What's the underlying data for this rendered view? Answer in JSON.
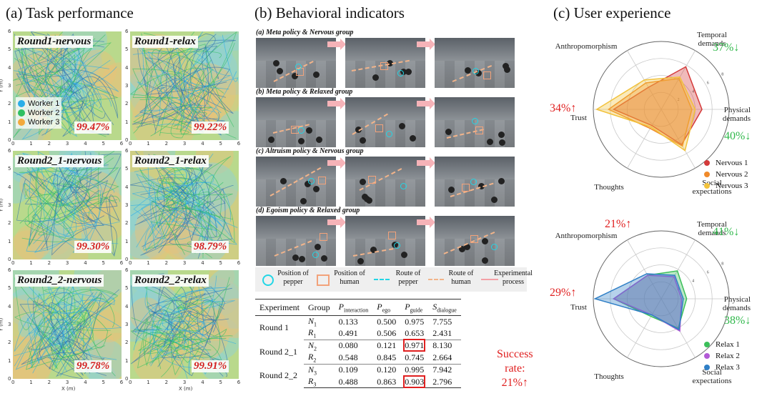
{
  "titles": {
    "a": "(a) Task performance",
    "b": "(b) Behavioral indicators",
    "c": "(c) User experience"
  },
  "task_performance": {
    "legend": [
      {
        "name": "Worker 1",
        "color": "#2aaee8"
      },
      {
        "name": "Worker 2",
        "color": "#2fc062"
      },
      {
        "name": "Worker 3",
        "color": "#f2a93b"
      }
    ],
    "panels": [
      {
        "label": "Round1-nervous",
        "rate": "99.47%"
      },
      {
        "label": "Round1-relax",
        "rate": "99.22%"
      },
      {
        "label": "Round2_1-nervous",
        "rate": "99.30%"
      },
      {
        "label": "Round2_1-relax",
        "rate": "98.79%"
      },
      {
        "label": "Round2_2-nervous",
        "rate": "99.78%"
      },
      {
        "label": "Round2_2-relax",
        "rate": "99.91%"
      }
    ],
    "x_ticks": [
      "0",
      "1",
      "2",
      "3",
      "4",
      "5",
      "6"
    ],
    "y_ticks": [
      "6",
      "5",
      "4",
      "3",
      "2",
      "1",
      "0"
    ],
    "xlabel": "X (m)",
    "ylabel": "Y (m)"
  },
  "behavioral": {
    "rows": [
      {
        "title": "(a) Meta policy & Nervous group"
      },
      {
        "title": "(b) Meta policy & Relaxed group"
      },
      {
        "title": "(c) Altruism policy & Nervous group"
      },
      {
        "title": "(d) Egoism policy & Relaxed group"
      }
    ],
    "legend": {
      "pepper_position": "Position of pepper",
      "human_position": "Position of human",
      "pepper_route": "Route of pepper",
      "human_route": "Route of human",
      "process": "Experimental process"
    },
    "table": {
      "headers": [
        "Experiment",
        "Group",
        "P_interaction",
        "P_ego",
        "P_guide",
        "S_dialogue"
      ],
      "groups": [
        {
          "experiment": "Round 1",
          "rows": [
            {
              "group": "N",
              "sub": "1",
              "vals": [
                "0.133",
                "0.500",
                "0.975",
                "7.755"
              ]
            },
            {
              "group": "R",
              "sub": "1",
              "vals": [
                "0.491",
                "0.506",
                "0.653",
                "2.431"
              ]
            }
          ]
        },
        {
          "experiment": "Round 2_1",
          "rows": [
            {
              "group": "N",
              "sub": "2",
              "vals": [
                "0.080",
                "0.121",
                "0.971",
                "8.130"
              ]
            },
            {
              "group": "R",
              "sub": "2",
              "vals": [
                "0.548",
                "0.845",
                "0.745",
                "2.664"
              ]
            }
          ]
        },
        {
          "experiment": "Round 2_2",
          "rows": [
            {
              "group": "N",
              "sub": "3",
              "vals": [
                "0.109",
                "0.120",
                "0.995",
                "7.942"
              ]
            },
            {
              "group": "R",
              "sub": "3",
              "vals": [
                "0.488",
                "0.863",
                "0.903",
                "2.796"
              ]
            }
          ]
        }
      ]
    },
    "success": {
      "line1": "Success",
      "line2": "rate:",
      "line3": "21%"
    }
  },
  "user_experience": {
    "top_annotations": {
      "temporal": "37%",
      "physical": "40%",
      "trust": "34%"
    },
    "bottom_annotations": {
      "anthropomorphism": "21%",
      "temporal": "41%",
      "physical": "38%",
      "trust": "29%"
    }
  },
  "chart_data": [
    {
      "type": "radar",
      "axes": [
        "Temporal demands",
        "Physical demands",
        "Social expectations",
        "Thoughts",
        "Trust",
        "Anthropomorphism"
      ],
      "rlim": [
        0,
        8
      ],
      "r_ticks": [
        "2",
        "4",
        "6",
        "8"
      ],
      "series": [
        {
          "name": "Nervous 1",
          "color": "#d43a3a",
          "values": [
            5.8,
            4.8,
            4.8,
            2.2,
            5.6,
            3.0
          ]
        },
        {
          "name": "Nervous 2",
          "color": "#f08a2a",
          "values": [
            4.2,
            3.6,
            5.0,
            2.6,
            6.2,
            3.6
          ]
        },
        {
          "name": "Nervous 3",
          "color": "#f2c23b",
          "values": [
            4.4,
            4.0,
            5.6,
            2.4,
            7.6,
            4.0
          ]
        }
      ]
    },
    {
      "type": "radar",
      "axes": [
        "Temporal demands",
        "Physical demands",
        "Social expectations",
        "Thoughts",
        "Trust",
        "Anthropomorphism"
      ],
      "rlim": [
        0,
        8
      ],
      "r_ticks": [
        "2",
        "4",
        "6",
        "8"
      ],
      "series": [
        {
          "name": "Relax 1",
          "color": "#3cbf5a",
          "values": [
            3.8,
            3.0,
            4.0,
            2.4,
            5.6,
            3.2
          ]
        },
        {
          "name": "Relax 2",
          "color": "#b25ad6",
          "values": [
            3.0,
            2.4,
            4.4,
            2.2,
            5.6,
            3.2
          ]
        },
        {
          "name": "Relax 3",
          "color": "#2f7fc6",
          "values": [
            3.2,
            2.6,
            4.2,
            2.2,
            7.8,
            3.4
          ]
        }
      ]
    }
  ]
}
